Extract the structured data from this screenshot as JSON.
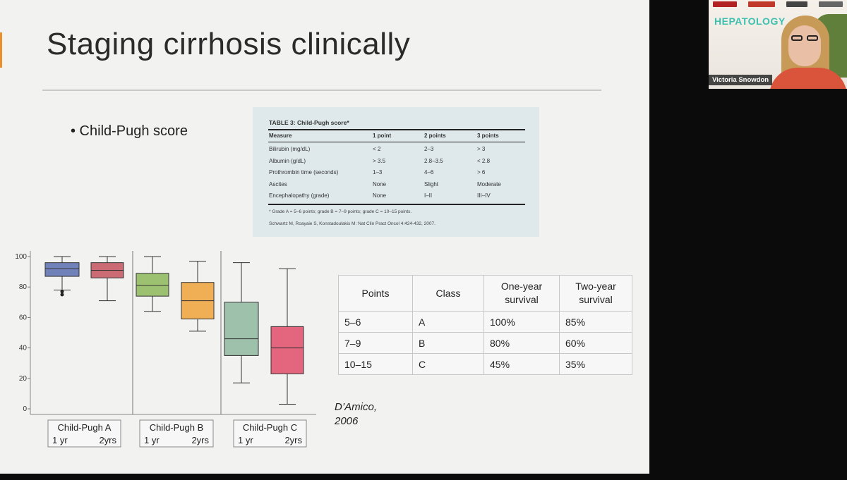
{
  "slide": {
    "title": "Staging cirrhosis clinically",
    "bullet": "• Child-Pugh score"
  },
  "child_pugh_table": {
    "title": "TABLE 3: Child-Pugh score*",
    "headers": [
      "Measure",
      "1 point",
      "2 points",
      "3 points"
    ],
    "rows": [
      [
        "Bilirubin (mg/dL)",
        "< 2",
        "2–3",
        "> 3"
      ],
      [
        "Albumin (g/dL)",
        "> 3.5",
        "2.8–3.5",
        "< 2.8"
      ],
      [
        "Prothrombin time (seconds)",
        "1–3",
        "4–6",
        "> 6"
      ],
      [
        "Ascites",
        "None",
        "Slight",
        "Moderate"
      ],
      [
        "Encephalopathy (grade)",
        "None",
        "I–II",
        "III–IV"
      ]
    ],
    "footnote": "* Grade A = 5–6 points; grade B = 7–9 points; grade C = 10–15 points.",
    "source": "Schwartz M, Roayaie S, Konstadoulakis M: Nat Clin Pract Oncol 4:424-432, 2007."
  },
  "chart_data": {
    "type": "box",
    "yticks": [
      0,
      20,
      40,
      60,
      80,
      100
    ],
    "ylim": [
      0,
      100
    ],
    "groups": [
      {
        "label": "Child-Pugh A",
        "sub_labels": [
          "1 yr",
          "2yrs"
        ]
      },
      {
        "label": "Child-Pugh B",
        "sub_labels": [
          "1 yr",
          "2yrs"
        ]
      },
      {
        "label": "Child-Pugh C",
        "sub_labels": [
          "1 yr",
          "2yrs"
        ]
      }
    ],
    "boxes": [
      {
        "group": 0,
        "period": "1 yr",
        "min": 78,
        "q1": 87,
        "median": 92,
        "q3": 96,
        "max": 100,
        "outliers": [
          77,
          75
        ],
        "color": "#5b6fb0"
      },
      {
        "group": 0,
        "period": "2yrs",
        "min": 71,
        "q1": 86,
        "median": 91,
        "q3": 96,
        "max": 100,
        "outliers": [],
        "color": "#c4555f"
      },
      {
        "group": 1,
        "period": "1 yr",
        "min": 64,
        "q1": 74,
        "median": 81,
        "q3": 89,
        "max": 100,
        "outliers": [],
        "color": "#8cb85a"
      },
      {
        "group": 1,
        "period": "2yrs",
        "min": 51,
        "q1": 59,
        "median": 71,
        "q3": 83,
        "max": 97,
        "outliers": [],
        "color": "#f0a33a"
      },
      {
        "group": 2,
        "period": "1 yr",
        "min": 17,
        "q1": 35,
        "median": 46,
        "q3": 70,
        "max": 96,
        "outliers": [],
        "color": "#8fb8a0"
      },
      {
        "group": 2,
        "period": "2yrs",
        "min": 3,
        "q1": 23,
        "median": 40,
        "q3": 54,
        "max": 92,
        "outliers": [],
        "color": "#e24d6a"
      }
    ]
  },
  "survival_table": {
    "headers": [
      "Points",
      "Class",
      "One-year\nsurvival",
      "Two-year\nsurvival"
    ],
    "rows": [
      [
        "5–6",
        "A",
        "100%",
        "85%"
      ],
      [
        "7–9",
        "B",
        "80%",
        "60%"
      ],
      [
        "10–15",
        "C",
        "45%",
        "35%"
      ]
    ]
  },
  "citation": "D’Amico, 2006",
  "webcam": {
    "banner": "HEPATOLOGY",
    "participant_name": "Victoria Snowdon"
  }
}
